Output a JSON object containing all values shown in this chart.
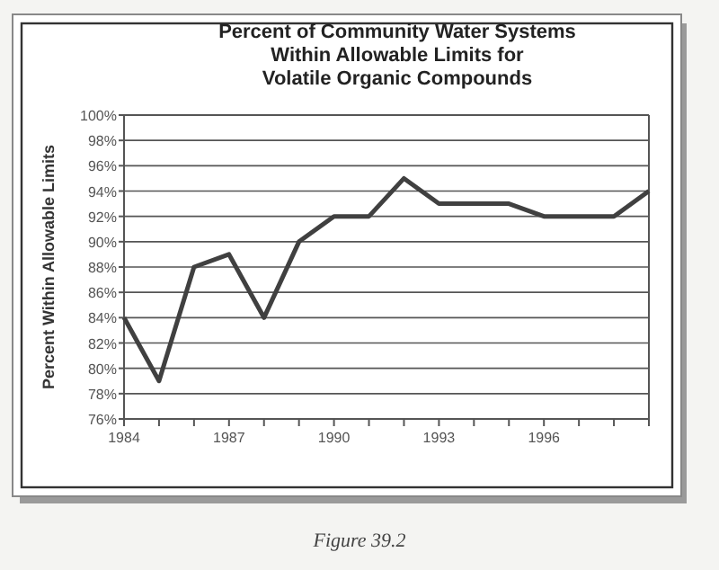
{
  "chart_data": {
    "type": "line",
    "title": "Percent of Community Water Systems\nWithin Allowable Limits for\nVolatile Organic Compounds",
    "ylabel": "Percent Within Allowable Limits",
    "annotations": [
      "Figure 39.2"
    ],
    "x": [
      1984,
      1985,
      1986,
      1987,
      1988,
      1989,
      1990,
      1991,
      1992,
      1993,
      1994,
      1995,
      1996,
      1997,
      1998,
      1999
    ],
    "series": [
      {
        "color": "#404040",
        "values": [
          84,
          79,
          88,
          89,
          84,
          90,
          92,
          92,
          95,
          93,
          93,
          93,
          92,
          92,
          92,
          94
        ]
      }
    ],
    "xlim": [
      1984,
      1999
    ],
    "xticks": [
      1984,
      {
        "value": 1985,
        "label": null
      },
      {
        "value": 1986,
        "label": null
      },
      1987,
      {
        "value": 1988,
        "label": null
      },
      {
        "value": 1989,
        "label": null
      },
      1990,
      {
        "value": 1991,
        "label": null
      },
      {
        "value": 1992,
        "label": null
      },
      1993,
      {
        "value": 1994,
        "label": null
      },
      {
        "value": 1995,
        "label": null
      },
      1996,
      {
        "value": 1997,
        "label": null
      },
      {
        "value": 1998,
        "label": null
      },
      {
        "value": 1999,
        "label": null
      }
    ],
    "ylim": [
      76,
      100
    ],
    "yticks": [
      {
        "value": 76,
        "label": "76%"
      },
      {
        "value": 78,
        "label": "78%"
      },
      {
        "value": 80,
        "label": "80%"
      },
      {
        "value": 82,
        "label": "82%"
      },
      {
        "value": 84,
        "label": "84%"
      },
      {
        "value": 86,
        "label": "86%"
      },
      {
        "value": 88,
        "label": "88%"
      },
      {
        "value": 90,
        "label": "90%"
      },
      {
        "value": 92,
        "label": "92%"
      },
      {
        "value": 94,
        "label": "94%"
      },
      {
        "value": 96,
        "label": "96%"
      },
      {
        "value": 98,
        "label": "98%"
      },
      {
        "value": 100,
        "label": "100%"
      }
    ],
    "grid": "y",
    "marker": "none",
    "line_style": "solid"
  }
}
